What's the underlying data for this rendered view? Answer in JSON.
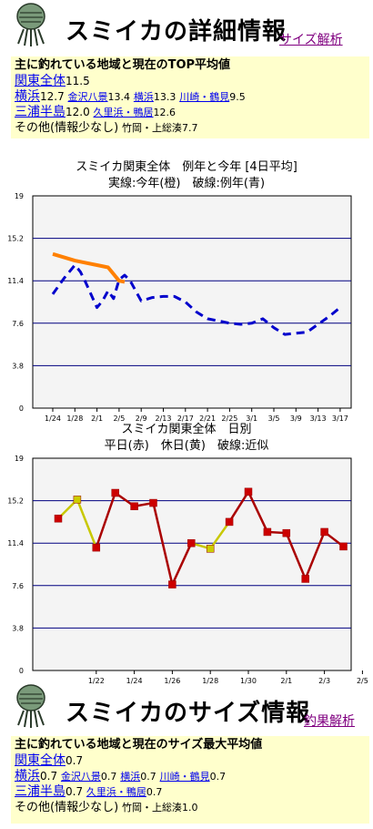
{
  "detail": {
    "title": "スミイカの詳細情報",
    "link": "サイズ解析",
    "heading": "主に釣れている地域と現在のTOP平均値",
    "region": "関東全体",
    "region_value": "11.5",
    "r2": [
      {
        "name": "横浜",
        "value": "12.7",
        "big": true
      },
      {
        "name": "金沢八景",
        "value": "13.4",
        "big": false
      },
      {
        "name": "横浜",
        "value": "13.3",
        "big": false
      },
      {
        "name": "川崎・鶴見",
        "value": "9.5",
        "big": false
      }
    ],
    "r3": [
      {
        "name": "三浦半島",
        "value": "12.0",
        "big": true
      },
      {
        "name": "久里浜・鴨居",
        "value": "12.6",
        "big": false
      }
    ],
    "other_label": "その他(情報少なし)",
    "other_detail": "竹岡・上総湊7.7"
  },
  "size": {
    "title": "スミイカのサイズ情報",
    "link": "釣果解析",
    "heading": "主に釣れている地域と現在のサイズ最大平均値",
    "region": "関東全体",
    "region_value": "0.7",
    "r2": [
      {
        "name": "横浜",
        "value": "0.7",
        "big": true
      },
      {
        "name": "金沢八景",
        "value": "0.7",
        "big": false
      },
      {
        "name": "横浜",
        "value": "0.7",
        "big": false
      },
      {
        "name": "川崎・鶴見",
        "value": "0.7",
        "big": false
      }
    ],
    "r3": [
      {
        "name": "三浦半島",
        "value": "0.7",
        "big": true
      },
      {
        "name": "久里浜・鴨居",
        "value": "0.7",
        "big": false
      }
    ],
    "other_label": "その他(情報少なし)",
    "other_detail": "竹岡・上総湊1.0"
  },
  "colors": {
    "panel": "#ffffcc",
    "plot_bg": "#f4f4f4",
    "grid": "#000080",
    "this_year": "#ff8000",
    "last_year": "#0000cc",
    "weekday": "#cc0000",
    "holiday": "#cccc00",
    "approx": "#aa0000"
  },
  "chart_data": [
    {
      "type": "line",
      "title": "スミイカ関東全体　例年と今年 [4日平均]",
      "subtitle": "実線:今年(橙)　破線:例年(青)",
      "ylim": [
        0,
        19
      ],
      "yticks": [
        "0",
        "3.8",
        "7.6",
        "11.4",
        "15.2",
        "19"
      ],
      "categories": [
        "1/24",
        "1/28",
        "2/1",
        "2/5",
        "2/9",
        "2/13",
        "2/17",
        "2/21",
        "2/25",
        "3/1",
        "3/5",
        "3/9",
        "3/13",
        "3/17"
      ],
      "series": [
        {
          "style": "solid",
          "color": "#ff8000",
          "x": [
            0,
            0.5,
            1,
            1.5,
            2,
            2.5,
            3,
            3.25
          ],
          "values": [
            13.8,
            13.5,
            13.2,
            13.0,
            12.8,
            12.6,
            11.4,
            11.3
          ]
        },
        {
          "style": "dashed",
          "color": "#0000cc",
          "x": [
            0,
            0.25,
            0.5,
            0.75,
            1,
            1.25,
            1.5,
            1.75,
            2,
            2.25,
            2.5,
            2.75,
            3,
            3.25,
            3.5,
            3.75,
            4,
            4.5,
            5,
            5.5,
            6,
            6.5,
            7,
            7.5,
            8,
            8.5,
            9,
            9.5,
            10,
            10.5,
            11,
            11.5,
            12,
            12.5,
            13
          ],
          "values": [
            10.2,
            10.9,
            11.6,
            12.2,
            12.8,
            12.2,
            11.2,
            10.1,
            9.0,
            9.6,
            10.5,
            9.8,
            11.5,
            11.9,
            11.4,
            10.5,
            9.6,
            9.9,
            10.0,
            10.0,
            9.5,
            8.6,
            8.0,
            7.8,
            7.6,
            7.5,
            7.6,
            8.0,
            7.2,
            6.6,
            6.7,
            6.8,
            7.5,
            8.2,
            9.0
          ]
        }
      ]
    },
    {
      "type": "line",
      "title": "スミイカ関東全体　日別",
      "subtitle": "平日(赤)　休日(黄)　破線:近似",
      "ylim": [
        0,
        19
      ],
      "yticks": [
        "0",
        "3.8",
        "7.6",
        "11.4",
        "15.2",
        "19"
      ],
      "categories": [
        "1/22",
        "1/24",
        "1/26",
        "1/28",
        "1/30",
        "2/1",
        "2/3",
        "2/5"
      ],
      "points": [
        {
          "x": "1/20",
          "y": 13.6,
          "type": "weekday"
        },
        {
          "x": "1/21",
          "y": 15.3,
          "type": "holiday"
        },
        {
          "x": "1/22",
          "y": 11.0,
          "type": "weekday"
        },
        {
          "x": "1/23",
          "y": 15.9,
          "type": "weekday"
        },
        {
          "x": "1/24",
          "y": 14.7,
          "type": "weekday"
        },
        {
          "x": "1/25",
          "y": 15.0,
          "type": "weekday"
        },
        {
          "x": "1/26",
          "y": 7.7,
          "type": "weekday"
        },
        {
          "x": "1/27",
          "y": 11.4,
          "type": "weekday"
        },
        {
          "x": "1/28",
          "y": 10.9,
          "type": "holiday"
        },
        {
          "x": "1/29",
          "y": 13.3,
          "type": "weekday"
        },
        {
          "x": "1/30",
          "y": 16.0,
          "type": "weekday"
        },
        {
          "x": "1/31",
          "y": 12.4,
          "type": "weekday"
        },
        {
          "x": "2/1",
          "y": 12.3,
          "type": "weekday"
        },
        {
          "x": "2/2",
          "y": 8.2,
          "type": "weekday"
        },
        {
          "x": "2/3",
          "y": 12.4,
          "type": "weekday"
        },
        {
          "x": "2/4",
          "y": 11.1,
          "type": "weekday"
        }
      ]
    }
  ]
}
